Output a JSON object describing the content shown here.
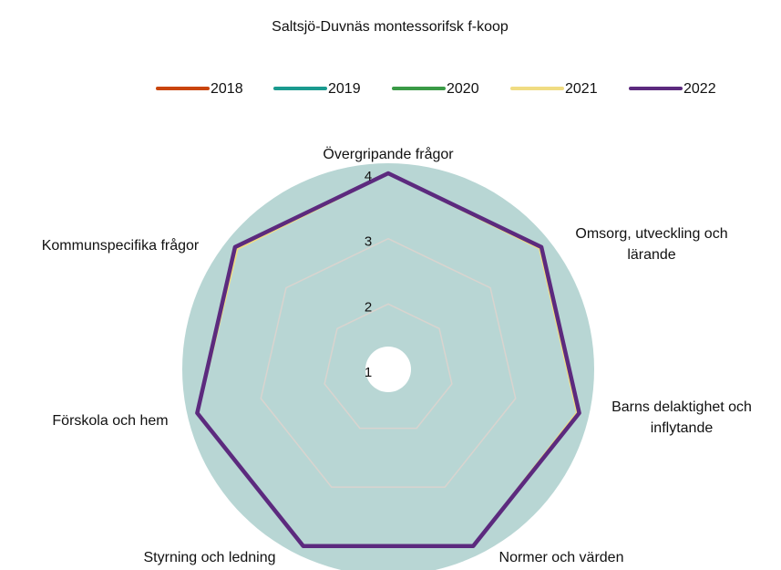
{
  "chart_data": {
    "type": "radar",
    "title": "Saltsjö-Duvnäs montessorifsk f-koop",
    "categories": [
      "Övergripande frågor",
      "Omsorg, utveckling och\nlärande",
      "Barns delaktighet och\ninflytande",
      "Normer och värden",
      "Styrning och ledning",
      "Förskola och hem",
      "Kommunspecifika frågor"
    ],
    "series": [
      {
        "name": "2018",
        "color": "#c9450c",
        "values": [
          null,
          null,
          null,
          null,
          null,
          null,
          null
        ]
      },
      {
        "name": "2019",
        "color": "#1a9a8f",
        "values": [
          null,
          null,
          null,
          null,
          null,
          null,
          null
        ]
      },
      {
        "name": "2020",
        "color": "#3a9a46",
        "values": [
          null,
          null,
          null,
          null,
          null,
          null,
          null
        ]
      },
      {
        "name": "2021",
        "color": "#f0dc82",
        "values": [
          4,
          3.97,
          3.97,
          4,
          4,
          4,
          3.96
        ]
      },
      {
        "name": "2022",
        "color": "#5c2a7e",
        "values": [
          4,
          4,
          4,
          4,
          4,
          4,
          4
        ]
      }
    ],
    "rlim": [
      1,
      4
    ],
    "rticks": [
      1,
      2,
      3,
      4
    ],
    "grid": true,
    "legend": "top"
  }
}
